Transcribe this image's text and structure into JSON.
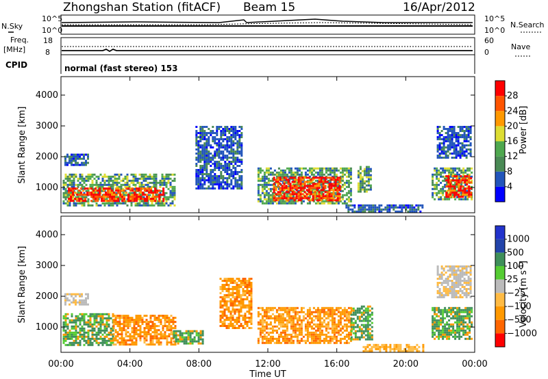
{
  "header": {
    "station": "Zhongshan Station (fitACF)",
    "beam": "Beam 15",
    "date": "16/Apr/2012"
  },
  "top_panels": {
    "nsky_label": "N.Sky",
    "nsky_ticks": [
      "10^5",
      "10^0"
    ],
    "nsearch_label": "N.Search",
    "nsearch_ticks": [
      "10^5",
      "10^0"
    ],
    "freq_label_1": "Freq.",
    "freq_label_2": "[MHz]",
    "freq_ticks": [
      "18",
      "8"
    ],
    "nave_label": "Nave",
    "nave_ticks": [
      "60",
      "0"
    ],
    "cpid_label": "CPID",
    "cpid_text": "normal (fast stereo) 153"
  },
  "colors": {
    "power": [
      "#0000ff",
      "#2255bb",
      "#4a8a55",
      "#4fa84f",
      "#dddd33",
      "#ff9900",
      "#ff5500",
      "#ff0000"
    ],
    "velocity": [
      "#ff0000",
      "#ff6600",
      "#ff9900",
      "#ffbb44",
      "#bbbbbb",
      "#55cc33",
      "#3f8f5a",
      "#2244aa",
      "#2233cc"
    ]
  },
  "chart_data": [
    {
      "type": "heatmap",
      "title": "Power",
      "ylabel": "Slant Range [km]",
      "xlabel": "Time UT",
      "ylim": [
        180,
        4600
      ],
      "xlim_hours": [
        0,
        24
      ],
      "x_ticks": [
        "00:00",
        "04:00",
        "08:00",
        "12:00",
        "16:00",
        "20:00",
        "00:00"
      ],
      "y_ticks": [
        "1000",
        "2000",
        "3000",
        "4000"
      ],
      "colorbar_label": "Power [dB]",
      "colorbar_ticks": [
        "4",
        "8",
        "12",
        "16",
        "20",
        "24",
        "28"
      ],
      "regions": [
        {
          "t0": 0.1,
          "t1": 6.6,
          "r0": 450,
          "r1": 1450,
          "level": "mid"
        },
        {
          "t0": 0.4,
          "t1": 6.0,
          "r0": 550,
          "r1": 1000,
          "level": "high"
        },
        {
          "t0": 0.2,
          "t1": 1.6,
          "r0": 1750,
          "r1": 2100,
          "level": "low"
        },
        {
          "t0": 7.8,
          "t1": 10.5,
          "r0": 1000,
          "r1": 3000,
          "level": "low"
        },
        {
          "t0": 11.4,
          "t1": 16.8,
          "r0": 500,
          "r1": 1650,
          "level": "mid"
        },
        {
          "t0": 12.3,
          "t1": 16.2,
          "r0": 600,
          "r1": 1350,
          "level": "high"
        },
        {
          "t0": 17.2,
          "t1": 18.0,
          "r0": 900,
          "r1": 1700,
          "level": "mid"
        },
        {
          "t0": 16.5,
          "t1": 21.0,
          "r0": 200,
          "r1": 450,
          "level": "low"
        },
        {
          "t0": 21.5,
          "t1": 23.8,
          "r0": 600,
          "r1": 1650,
          "level": "mid"
        },
        {
          "t0": 22.3,
          "t1": 23.8,
          "r0": 700,
          "r1": 1400,
          "level": "high"
        },
        {
          "t0": 21.8,
          "t1": 23.8,
          "r0": 2000,
          "r1": 3000,
          "level": "low"
        }
      ]
    },
    {
      "type": "heatmap",
      "title": "Velocity",
      "ylabel": "Slant Range [km]",
      "xlabel": "Time UT",
      "ylim": [
        180,
        4600
      ],
      "xlim_hours": [
        0,
        24
      ],
      "x_ticks": [
        "00:00",
        "04:00",
        "08:00",
        "12:00",
        "16:00",
        "20:00",
        "00:00"
      ],
      "y_ticks": [
        "1000",
        "2000",
        "3000",
        "4000"
      ],
      "colorbar_label": "Velocity [m s^-1]",
      "colorbar_ticks": [
        "1000",
        "500",
        "100",
        "25",
        "−25",
        "−100",
        "−500",
        "−1000"
      ],
      "regions": [
        {
          "t0": 0.1,
          "t1": 3.0,
          "r0": 450,
          "r1": 1450,
          "level": "green"
        },
        {
          "t0": 3.0,
          "t1": 6.6,
          "r0": 450,
          "r1": 1400,
          "level": "orange"
        },
        {
          "t0": 0.2,
          "t1": 1.6,
          "r0": 1750,
          "r1": 2100,
          "level": "gray"
        },
        {
          "t0": 6.5,
          "t1": 8.2,
          "r0": 500,
          "r1": 900,
          "level": "green"
        },
        {
          "t0": 9.2,
          "t1": 11.0,
          "r0": 1000,
          "r1": 2600,
          "level": "orange"
        },
        {
          "t0": 11.4,
          "t1": 16.8,
          "r0": 500,
          "r1": 1650,
          "level": "orange"
        },
        {
          "t0": 16.8,
          "t1": 18.0,
          "r0": 600,
          "r1": 1700,
          "level": "green"
        },
        {
          "t0": 17.5,
          "t1": 21.0,
          "r0": 200,
          "r1": 450,
          "level": "lightorange"
        },
        {
          "t0": 21.5,
          "t1": 23.8,
          "r0": 600,
          "r1": 1650,
          "level": "green"
        },
        {
          "t0": 21.8,
          "t1": 23.8,
          "r0": 2000,
          "r1": 3000,
          "level": "gray"
        }
      ]
    }
  ]
}
